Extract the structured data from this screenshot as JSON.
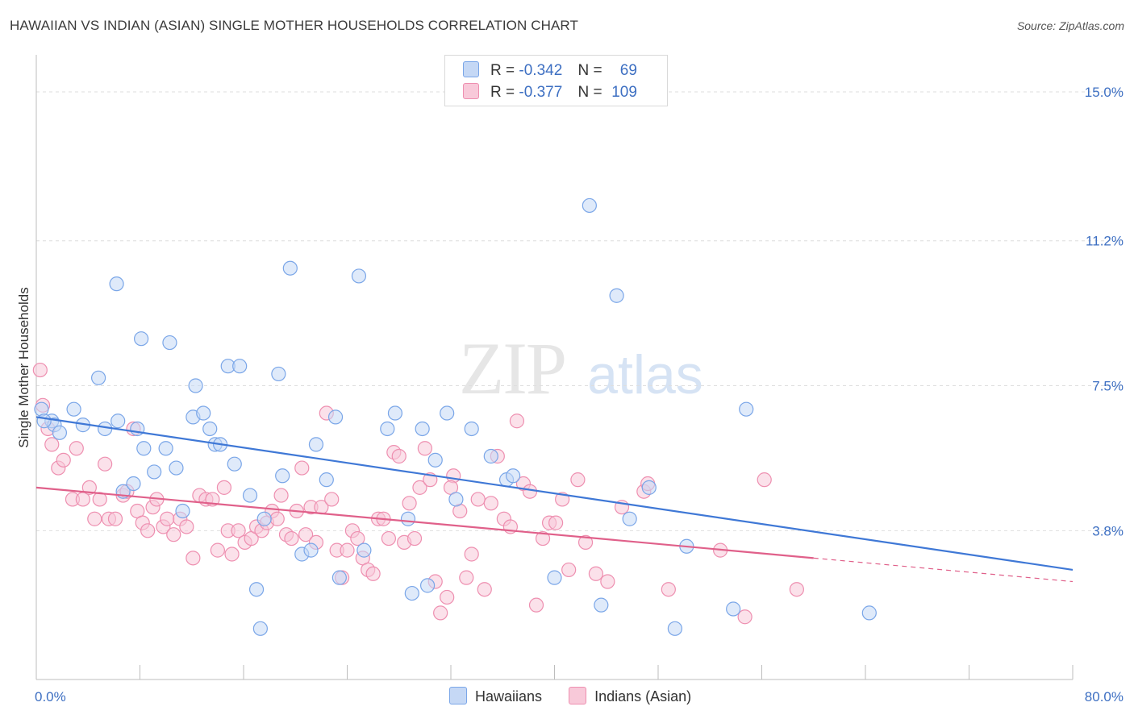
{
  "header": {
    "title": "HAWAIIAN VS INDIAN (ASIAN) SINGLE MOTHER HOUSEHOLDS CORRELATION CHART",
    "source": "Source: ZipAtlas.com"
  },
  "legend": {
    "rows": [
      {
        "r_label": "R =",
        "r_value": "-0.342",
        "n_label": "N =",
        "n_value": "69",
        "color": "#7aa6e8",
        "fill": "#c5d8f5"
      },
      {
        "r_label": "R =",
        "r_value": "-0.377",
        "n_label": "N =",
        "n_value": "109",
        "color": "#ee8fb0",
        "fill": "#f8c9d9"
      }
    ]
  },
  "bottom_legend": {
    "items": [
      {
        "label": "Hawaiians",
        "color": "#7aa6e8",
        "fill": "#c5d8f5"
      },
      {
        "label": "Indians (Asian)",
        "color": "#ee8fb0",
        "fill": "#f8c9d9"
      }
    ]
  },
  "watermark": {
    "zip": "ZIP",
    "atlas": "atlas"
  },
  "chart_data": {
    "type": "scatter",
    "title": "HAWAIIAN VS INDIAN (ASIAN) SINGLE MOTHER HOUSEHOLDS CORRELATION CHART",
    "xlabel": "",
    "ylabel": "Single Mother Households",
    "xlim": [
      0,
      80
    ],
    "ylim": [
      0,
      15.7
    ],
    "x_tick_labels": [
      "0.0%",
      "80.0%"
    ],
    "y_ticks": [
      3.8,
      7.5,
      11.2,
      15.0
    ],
    "y_tick_labels": [
      "3.8%",
      "7.5%",
      "11.2%",
      "15.0%"
    ],
    "grid": "horizontal dashed",
    "legend_position": "top-center",
    "series": [
      {
        "name": "Hawaiians",
        "color": "#3f78d6",
        "trend": {
          "x": [
            0,
            80
          ],
          "y": [
            6.7,
            2.8
          ]
        },
        "points": [
          [
            0.4,
            6.9
          ],
          [
            1.2,
            6.6
          ],
          [
            1.4,
            6.5
          ],
          [
            1.8,
            6.3
          ],
          [
            2.9,
            6.9
          ],
          [
            3.6,
            6.5
          ],
          [
            4.8,
            7.7
          ],
          [
            5.3,
            6.4
          ],
          [
            6.2,
            10.1
          ],
          [
            6.3,
            6.6
          ],
          [
            6.7,
            4.8
          ],
          [
            7.5,
            5.0
          ],
          [
            7.8,
            6.4
          ],
          [
            8.1,
            8.7
          ],
          [
            8.3,
            5.9
          ],
          [
            9.1,
            5.3
          ],
          [
            10.0,
            5.9
          ],
          [
            10.3,
            8.6
          ],
          [
            10.8,
            5.4
          ],
          [
            11.3,
            4.3
          ],
          [
            12.1,
            6.7
          ],
          [
            12.3,
            7.5
          ],
          [
            12.9,
            6.8
          ],
          [
            13.4,
            6.4
          ],
          [
            13.8,
            6.0
          ],
          [
            14.2,
            6.0
          ],
          [
            14.8,
            8.0
          ],
          [
            15.3,
            5.5
          ],
          [
            15.7,
            8.0
          ],
          [
            16.5,
            4.7
          ],
          [
            17.0,
            2.3
          ],
          [
            17.3,
            1.3
          ],
          [
            17.6,
            4.1
          ],
          [
            18.7,
            7.8
          ],
          [
            19.0,
            5.2
          ],
          [
            19.6,
            10.5
          ],
          [
            20.5,
            3.2
          ],
          [
            21.2,
            3.3
          ],
          [
            21.6,
            6.0
          ],
          [
            22.4,
            5.1
          ],
          [
            23.1,
            6.7
          ],
          [
            23.4,
            2.6
          ],
          [
            24.9,
            10.3
          ],
          [
            25.3,
            3.3
          ],
          [
            27.1,
            6.4
          ],
          [
            27.7,
            6.8
          ],
          [
            28.7,
            4.1
          ],
          [
            29.0,
            2.2
          ],
          [
            29.8,
            6.4
          ],
          [
            30.2,
            2.4
          ],
          [
            30.8,
            5.6
          ],
          [
            31.7,
            6.8
          ],
          [
            32.4,
            4.6
          ],
          [
            33.6,
            6.4
          ],
          [
            35.1,
            5.7
          ],
          [
            36.3,
            5.1
          ],
          [
            36.8,
            5.2
          ],
          [
            40.0,
            2.6
          ],
          [
            42.7,
            12.1
          ],
          [
            43.6,
            1.9
          ],
          [
            44.8,
            9.8
          ],
          [
            45.8,
            4.1
          ],
          [
            47.3,
            4.9
          ],
          [
            49.3,
            1.3
          ],
          [
            50.2,
            3.4
          ],
          [
            53.8,
            1.8
          ],
          [
            54.8,
            6.9
          ],
          [
            64.3,
            1.7
          ],
          [
            0.6,
            6.6
          ]
        ]
      },
      {
        "name": "Indians (Asian)",
        "color": "#e0608a",
        "trend": {
          "x": [
            0,
            60
          ],
          "y": [
            4.9,
            3.1
          ]
        },
        "trend_dashed": {
          "x": [
            60,
            80
          ],
          "y": [
            3.1,
            2.5
          ]
        },
        "points": [
          [
            0.3,
            7.9
          ],
          [
            0.5,
            7.0
          ],
          [
            0.9,
            6.4
          ],
          [
            1.2,
            6.0
          ],
          [
            1.7,
            5.4
          ],
          [
            2.1,
            5.6
          ],
          [
            2.8,
            4.6
          ],
          [
            3.1,
            5.9
          ],
          [
            3.6,
            4.6
          ],
          [
            4.1,
            4.9
          ],
          [
            4.5,
            4.1
          ],
          [
            4.9,
            4.6
          ],
          [
            5.3,
            5.5
          ],
          [
            5.6,
            4.1
          ],
          [
            6.1,
            4.1
          ],
          [
            6.7,
            4.7
          ],
          [
            7.0,
            4.8
          ],
          [
            7.5,
            6.4
          ],
          [
            7.8,
            4.3
          ],
          [
            8.2,
            4.0
          ],
          [
            8.6,
            3.8
          ],
          [
            9.0,
            4.4
          ],
          [
            9.3,
            4.6
          ],
          [
            9.8,
            3.9
          ],
          [
            10.1,
            4.1
          ],
          [
            10.6,
            3.7
          ],
          [
            11.1,
            4.1
          ],
          [
            11.6,
            3.9
          ],
          [
            12.1,
            3.1
          ],
          [
            12.6,
            4.7
          ],
          [
            13.1,
            4.6
          ],
          [
            13.6,
            4.6
          ],
          [
            14.0,
            3.3
          ],
          [
            14.5,
            4.9
          ],
          [
            14.8,
            3.8
          ],
          [
            15.1,
            3.2
          ],
          [
            15.6,
            3.8
          ],
          [
            16.1,
            3.5
          ],
          [
            16.6,
            3.6
          ],
          [
            17.0,
            3.9
          ],
          [
            17.4,
            3.8
          ],
          [
            17.8,
            4.0
          ],
          [
            18.2,
            4.3
          ],
          [
            18.6,
            4.1
          ],
          [
            18.9,
            4.7
          ],
          [
            19.3,
            3.7
          ],
          [
            19.7,
            3.6
          ],
          [
            20.1,
            4.3
          ],
          [
            20.5,
            5.4
          ],
          [
            20.8,
            3.7
          ],
          [
            21.2,
            4.4
          ],
          [
            21.6,
            3.5
          ],
          [
            22.0,
            4.4
          ],
          [
            22.4,
            6.8
          ],
          [
            22.8,
            4.6
          ],
          [
            23.2,
            3.3
          ],
          [
            23.6,
            2.6
          ],
          [
            24.0,
            3.3
          ],
          [
            24.4,
            3.8
          ],
          [
            24.8,
            3.6
          ],
          [
            25.2,
            3.1
          ],
          [
            25.6,
            2.8
          ],
          [
            26.0,
            2.7
          ],
          [
            26.4,
            4.1
          ],
          [
            26.8,
            4.1
          ],
          [
            27.2,
            3.6
          ],
          [
            27.6,
            5.8
          ],
          [
            28.0,
            5.7
          ],
          [
            28.4,
            3.5
          ],
          [
            28.8,
            4.5
          ],
          [
            29.2,
            3.6
          ],
          [
            29.6,
            4.9
          ],
          [
            30.0,
            5.9
          ],
          [
            30.4,
            5.1
          ],
          [
            30.8,
            2.5
          ],
          [
            31.2,
            1.7
          ],
          [
            31.7,
            2.1
          ],
          [
            32.2,
            5.2
          ],
          [
            32.7,
            4.3
          ],
          [
            33.2,
            2.6
          ],
          [
            33.6,
            3.2
          ],
          [
            34.1,
            4.6
          ],
          [
            34.6,
            2.3
          ],
          [
            35.1,
            4.5
          ],
          [
            35.6,
            5.7
          ],
          [
            36.1,
            4.1
          ],
          [
            36.6,
            3.9
          ],
          [
            37.1,
            6.6
          ],
          [
            37.6,
            5.0
          ],
          [
            38.1,
            4.8
          ],
          [
            38.6,
            1.9
          ],
          [
            39.1,
            3.6
          ],
          [
            39.6,
            4.0
          ],
          [
            40.1,
            4.0
          ],
          [
            40.6,
            4.6
          ],
          [
            41.1,
            2.8
          ],
          [
            41.8,
            5.1
          ],
          [
            42.4,
            3.5
          ],
          [
            43.2,
            2.7
          ],
          [
            44.1,
            2.5
          ],
          [
            45.2,
            4.4
          ],
          [
            46.9,
            4.8
          ],
          [
            47.2,
            5.0
          ],
          [
            48.8,
            2.3
          ],
          [
            52.8,
            3.3
          ],
          [
            54.7,
            1.6
          ],
          [
            56.2,
            5.1
          ],
          [
            58.7,
            2.3
          ],
          [
            32.0,
            4.9
          ]
        ]
      }
    ]
  }
}
